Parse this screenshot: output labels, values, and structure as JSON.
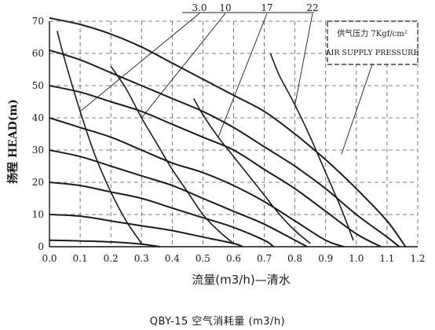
{
  "chart_data": {
    "type": "line",
    "xlabel": "流量(m3/h)—清水",
    "ylabel": "扬程 HEAD(m)",
    "caption": "QBY-15 空气消耗量 (m3/h)",
    "xlim": [
      0,
      1.2
    ],
    "ylim": [
      0,
      70
    ],
    "x_ticks": [
      "0.0",
      "0.1",
      "0.2",
      "0.3",
      "0.4",
      "0.5",
      "0.6",
      "0.7",
      "0.8",
      "0.9",
      "1.0",
      "1.1",
      "1.2"
    ],
    "y_ticks": [
      "0",
      "10",
      "20",
      "30",
      "40",
      "50",
      "60",
      "70"
    ],
    "grid": "dashed",
    "legend": {
      "line1": "供气压力 7Kgf/cm²",
      "line2": "AIR SUPPLY PRESSURE",
      "position": "top-right"
    },
    "pressure_curves": [
      {
        "x": [
          0.0,
          0.1,
          0.2,
          0.3,
          0.4,
          0.5,
          0.6,
          0.7,
          0.8,
          0.9,
          1.0,
          1.1,
          1.16
        ],
        "y": [
          71,
          69,
          66,
          62,
          57,
          52,
          47,
          42,
          35,
          27,
          18,
          8,
          0
        ]
      },
      {
        "x": [
          0.0,
          0.1,
          0.2,
          0.3,
          0.4,
          0.5,
          0.6,
          0.7,
          0.8,
          0.9,
          1.0,
          1.1,
          1.14
        ],
        "y": [
          61,
          58,
          54,
          50,
          46,
          42,
          37,
          31,
          25,
          18,
          10,
          3,
          0
        ]
      },
      {
        "x": [
          0.0,
          0.1,
          0.2,
          0.3,
          0.4,
          0.5,
          0.6,
          0.7,
          0.8,
          0.9,
          1.0,
          1.08
        ],
        "y": [
          50,
          48,
          45,
          42,
          38,
          34,
          30,
          24,
          18,
          11,
          4,
          0
        ]
      },
      {
        "x": [
          0.0,
          0.1,
          0.2,
          0.3,
          0.4,
          0.5,
          0.6,
          0.7,
          0.8,
          0.9,
          0.96
        ],
        "y": [
          40,
          37,
          34,
          30,
          26,
          23,
          19,
          14,
          8,
          2,
          0
        ]
      },
      {
        "x": [
          0.0,
          0.1,
          0.2,
          0.3,
          0.4,
          0.5,
          0.6,
          0.7,
          0.8,
          0.84
        ],
        "y": [
          30,
          28,
          25,
          22,
          19,
          15,
          11,
          7,
          2,
          0
        ]
      },
      {
        "x": [
          0.0,
          0.1,
          0.2,
          0.3,
          0.4,
          0.5,
          0.6,
          0.7,
          0.73
        ],
        "y": [
          20,
          19,
          17,
          15,
          12,
          9,
          6,
          2,
          0
        ]
      },
      {
        "x": [
          0.0,
          0.1,
          0.2,
          0.3,
          0.4,
          0.5,
          0.6,
          0.63
        ],
        "y": [
          10,
          9.5,
          8,
          6.5,
          5,
          3,
          1,
          0
        ]
      },
      {
        "x": [
          0.0,
          0.1,
          0.2,
          0.3,
          0.36
        ],
        "y": [
          2,
          1.8,
          1.5,
          0.8,
          0
        ]
      }
    ],
    "air_curves": [
      {
        "label": "3.0",
        "x": [
          0.025,
          0.05,
          0.1,
          0.15,
          0.2,
          0.25,
          0.3
        ],
        "y": [
          67,
          58,
          42,
          28,
          17,
          8,
          1
        ]
      },
      {
        "label": "10",
        "x": [
          0.2,
          0.25,
          0.3,
          0.35,
          0.4,
          0.45,
          0.5,
          0.55,
          0.6
        ],
        "y": [
          56,
          49,
          40,
          32,
          24,
          17,
          10,
          5,
          1
        ]
      },
      {
        "label": "17",
        "x": [
          0.47,
          0.5,
          0.55,
          0.6,
          0.65,
          0.7,
          0.75,
          0.8,
          0.85
        ],
        "y": [
          46,
          41,
          34,
          28,
          22,
          16,
          10,
          5,
          1
        ]
      },
      {
        "label": "22",
        "x": [
          0.72,
          0.75,
          0.8,
          0.85,
          0.9,
          0.95,
          0.99
        ],
        "y": [
          60,
          53,
          44,
          34,
          23,
          12,
          2
        ]
      }
    ]
  }
}
